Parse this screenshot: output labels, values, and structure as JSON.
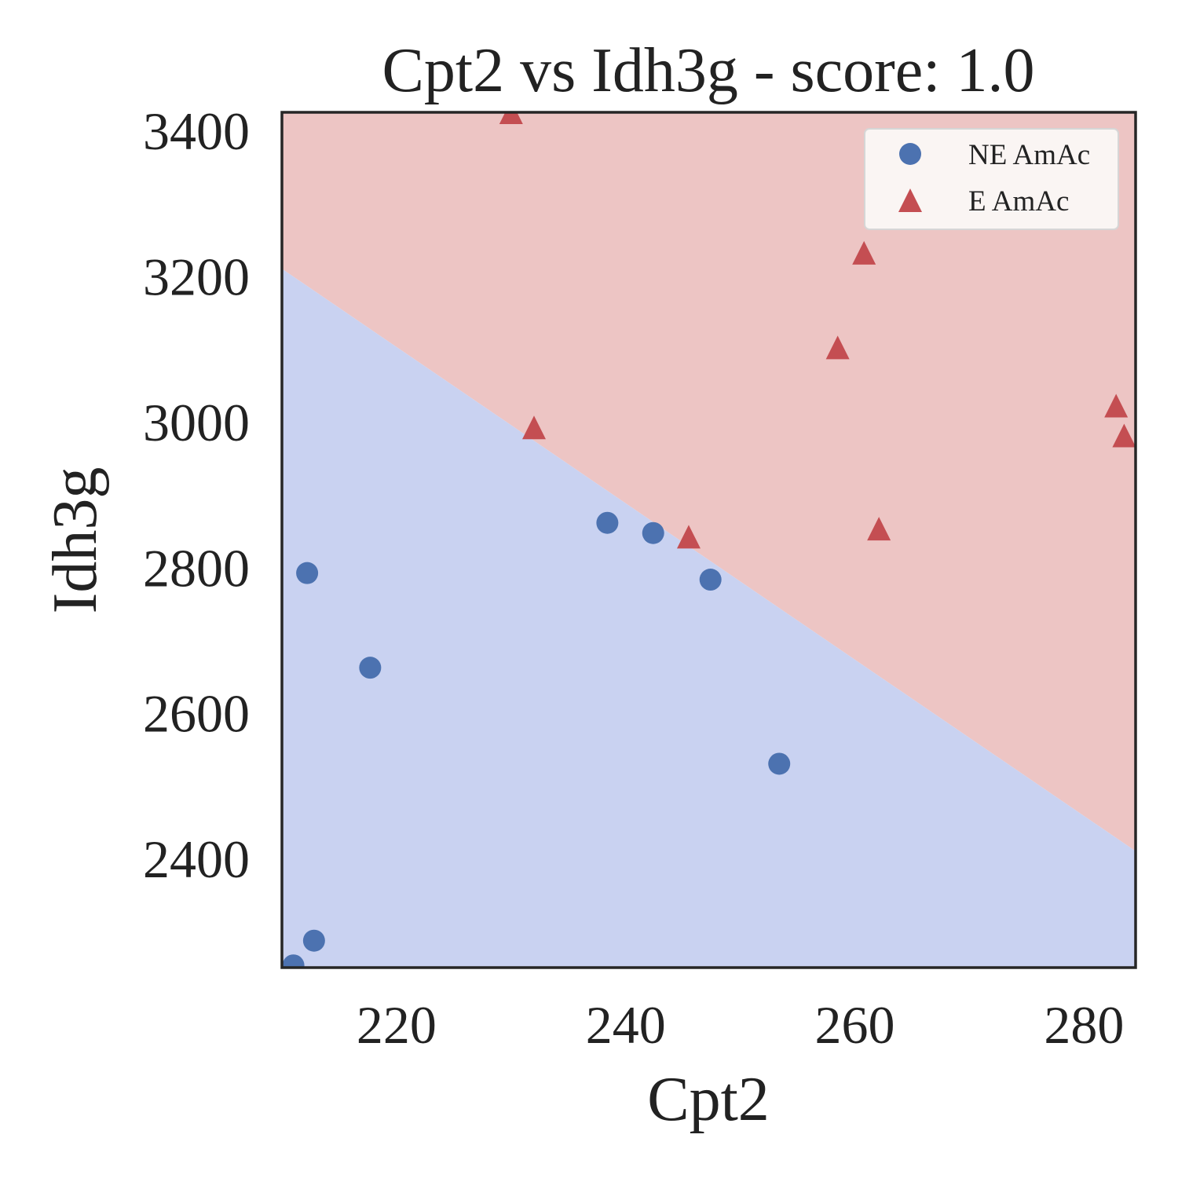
{
  "chart_data": {
    "type": "scatter",
    "title": "Cpt2 vs Idh3g - score: 1.0",
    "xlabel": "Cpt2",
    "ylabel": "Idh3g",
    "xlim": [
      210,
      284.5
    ],
    "ylim": [
      2250,
      3425
    ],
    "x_ticks": [
      220,
      240,
      260,
      280
    ],
    "y_ticks": [
      2400,
      2600,
      2800,
      3000,
      3200,
      3400
    ],
    "grid": false,
    "legend_position": "top-right",
    "decision_boundary": {
      "points": [
        [
          210,
          3210
        ],
        [
          284.5,
          2410
        ]
      ],
      "colors": {
        "E AmAc": "#edc5c4",
        "NE AmAc": "#c9d2f1"
      }
    },
    "series": [
      {
        "name": "NE AmAc",
        "marker": "circle",
        "color": "#4c72b0",
        "points": [
          [
            211.0,
            2253
          ],
          [
            212.2,
            2792
          ],
          [
            212.8,
            2287
          ],
          [
            217.7,
            2662
          ],
          [
            238.4,
            2861
          ],
          [
            242.4,
            2847
          ],
          [
            247.4,
            2783
          ],
          [
            253.4,
            2530
          ]
        ]
      },
      {
        "name": "E AmAc",
        "marker": "triangle",
        "color": "#c44e52",
        "points": [
          [
            230.0,
            3425
          ],
          [
            232.0,
            2992
          ],
          [
            245.5,
            2842
          ],
          [
            258.5,
            3102
          ],
          [
            260.8,
            3232
          ],
          [
            262.1,
            2853
          ],
          [
            282.8,
            3022
          ],
          [
            283.5,
            2981
          ]
        ]
      }
    ]
  }
}
